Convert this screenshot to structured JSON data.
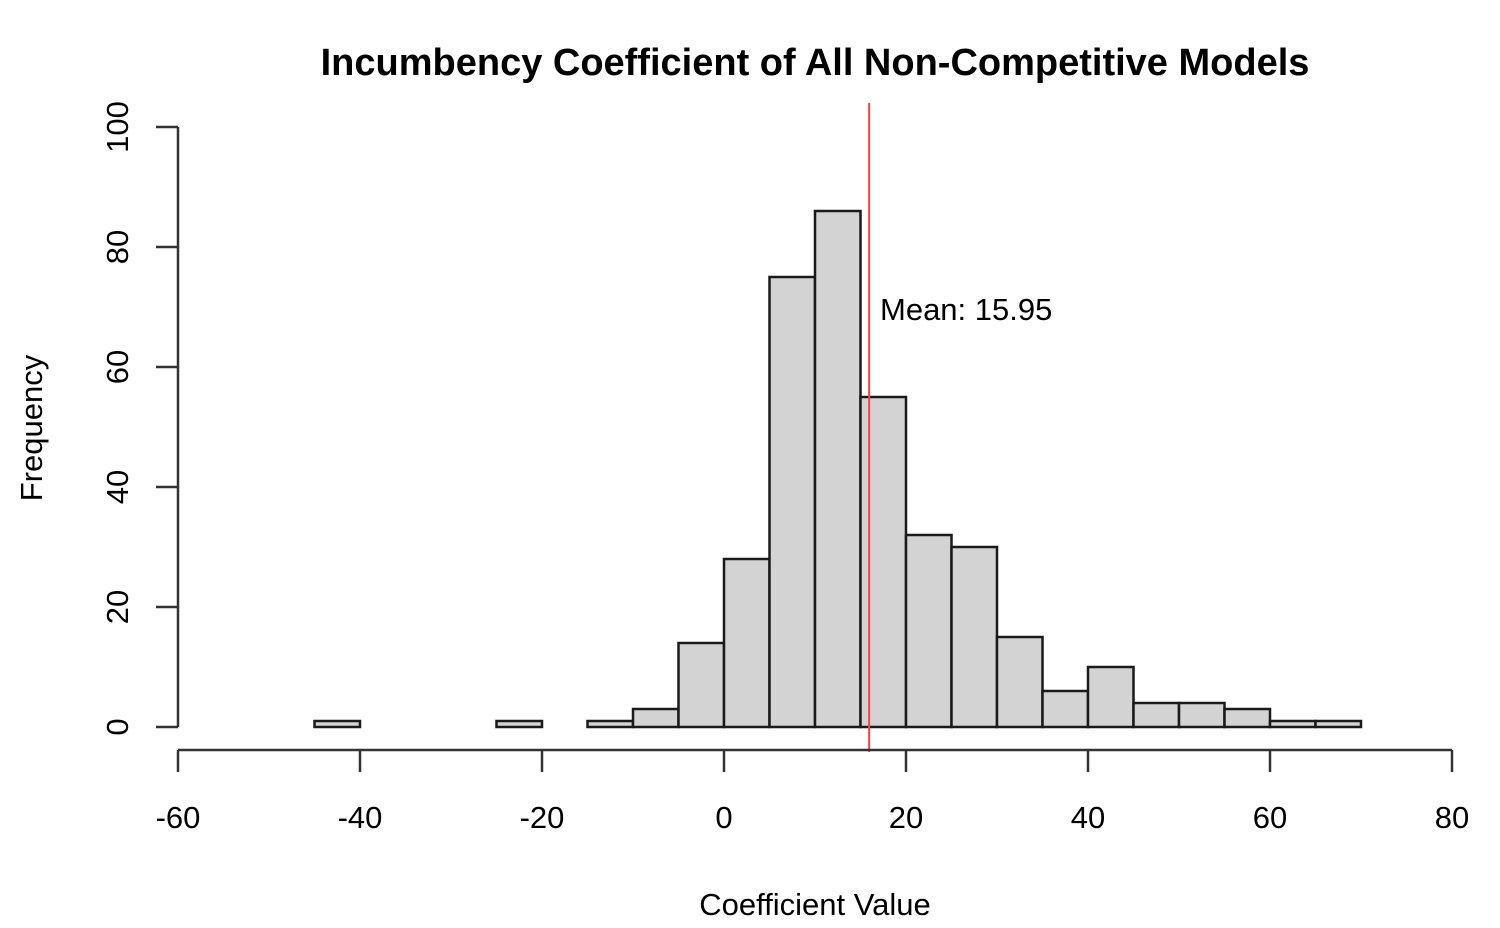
{
  "chart_data": {
    "type": "bar",
    "title": "Incumbency Coefficient of All Non-Competitive Models",
    "xlabel": "Coefficient Value",
    "ylabel": "Frequency",
    "xlim": [
      -60,
      80
    ],
    "ylim": [
      0,
      100
    ],
    "xticks": [
      "-60",
      "-40",
      "-20",
      "0",
      "20",
      "40",
      "60",
      "80"
    ],
    "yticks": [
      "0",
      "20",
      "40",
      "60",
      "80",
      "100"
    ],
    "bin_width": 5,
    "bins": [
      {
        "start": -45,
        "count": 1
      },
      {
        "start": -40,
        "count": 0
      },
      {
        "start": -35,
        "count": 0
      },
      {
        "start": -30,
        "count": 0
      },
      {
        "start": -25,
        "count": 1
      },
      {
        "start": -20,
        "count": 0
      },
      {
        "start": -15,
        "count": 1
      },
      {
        "start": -10,
        "count": 3
      },
      {
        "start": -5,
        "count": 14
      },
      {
        "start": 0,
        "count": 28
      },
      {
        "start": 5,
        "count": 75
      },
      {
        "start": 10,
        "count": 86
      },
      {
        "start": 15,
        "count": 55
      },
      {
        "start": 20,
        "count": 32
      },
      {
        "start": 25,
        "count": 30
      },
      {
        "start": 30,
        "count": 15
      },
      {
        "start": 35,
        "count": 6
      },
      {
        "start": 40,
        "count": 10
      },
      {
        "start": 45,
        "count": 4
      },
      {
        "start": 50,
        "count": 4
      },
      {
        "start": 55,
        "count": 3
      },
      {
        "start": 60,
        "count": 1
      },
      {
        "start": 65,
        "count": 1
      }
    ],
    "mean_line": {
      "value": 15.95,
      "label": "Mean: 15.95",
      "color": "#ff4040"
    },
    "bar_fill": "#d3d3d3",
    "bar_stroke": "#1a1a1a",
    "grid": false
  }
}
